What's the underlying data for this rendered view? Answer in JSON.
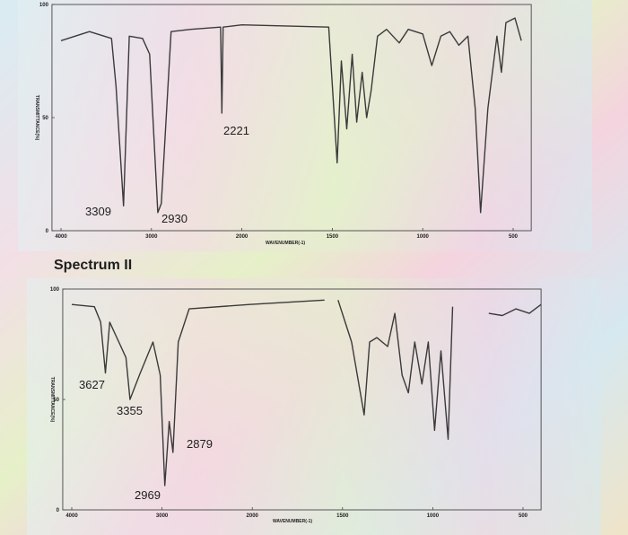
{
  "chart_data": [
    {
      "type": "line",
      "xlabel": "WAVENUMBER(-1)",
      "ylabel": "TRANSMITTANCE(%)",
      "x": [
        4000,
        3686,
        3441,
        3392,
        3309,
        3245,
        3098,
        3020,
        2930,
        2891,
        2783,
        2565,
        2235,
        2221,
        2207,
        2000,
        1520,
        1473,
        1450,
        1420,
        1390,
        1365,
        1335,
        1310,
        1285,
        1250,
        1200,
        1130,
        1080,
        1000,
        950,
        900,
        850,
        800,
        750,
        710,
        680,
        640,
        590,
        565,
        540,
        490,
        455
      ],
      "values": [
        84,
        88,
        85,
        64,
        11,
        86,
        85,
        78,
        8,
        12,
        88,
        89,
        90,
        52,
        90,
        91,
        90,
        30,
        75,
        45,
        78,
        48,
        70,
        50,
        62,
        86,
        89,
        83,
        89,
        87,
        73,
        86,
        88,
        82,
        86,
        54,
        8,
        54,
        86,
        70,
        92,
        94,
        84
      ],
      "color": "#3a3a3a",
      "xlim": [
        4100,
        400
      ],
      "xticks": [
        4000,
        3000,
        2000,
        1500,
        1000,
        500
      ],
      "ylim": [
        0,
        100
      ],
      "yticks": [
        0,
        50,
        100
      ],
      "annotations": [
        "3309",
        "2930",
        "2221"
      ]
    },
    {
      "type": "line",
      "title": "Spectrum II",
      "xlabel": "WAVENUMBER(-1)",
      "ylabel": "TRANSMITTANCE(%)",
      "x": [
        4000,
        3750,
        3680,
        3627,
        3580,
        3400,
        3355,
        3250,
        3100,
        3020,
        2969,
        2920,
        2879,
        2820,
        2700,
        2030,
        1600,
        1560,
        1525,
        1450,
        1380,
        1350,
        1310,
        1250,
        1210,
        1170,
        1135,
        1100,
        1060,
        1025,
        990,
        955,
        915,
        890,
        790,
        690,
        615,
        540,
        465,
        400
      ],
      "values": [
        93,
        92,
        85,
        62,
        85,
        69,
        50,
        61,
        76,
        61,
        11,
        40,
        26,
        76,
        91,
        93,
        95,
        null,
        95,
        76,
        43,
        76,
        78,
        74,
        89,
        61,
        53,
        76,
        57,
        76,
        36,
        72,
        32,
        92,
        null,
        89,
        88,
        91,
        89,
        93
      ],
      "color": "#3a3a3a",
      "xlim": [
        4100,
        400
      ],
      "xticks": [
        4000,
        3000,
        2000,
        1500,
        1000,
        500
      ],
      "ylim": [
        0,
        100
      ],
      "yticks": [
        0,
        50,
        100
      ],
      "annotations": [
        "3627",
        "3355",
        "2879",
        "2969"
      ]
    }
  ]
}
